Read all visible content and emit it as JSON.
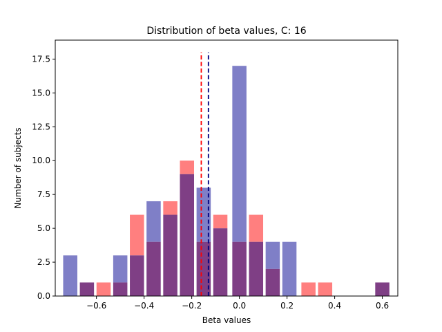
{
  "chart_data": {
    "type": "bar",
    "title": "Distribution of beta values, C: 16",
    "xlabel": "Beta values",
    "ylabel": "Number of subjects",
    "xlim": [
      -0.773,
      0.665
    ],
    "ylim": [
      0,
      18.9
    ],
    "bin_width": 0.07,
    "x_ticks": [
      {
        "value": -0.6,
        "label": "−0.6"
      },
      {
        "value": -0.4,
        "label": "−0.4"
      },
      {
        "value": -0.2,
        "label": "−0.2"
      },
      {
        "value": 0.0,
        "label": "0.0"
      },
      {
        "value": 0.2,
        "label": "0.2"
      },
      {
        "value": 0.4,
        "label": "0.4"
      },
      {
        "value": 0.6,
        "label": "0.6"
      }
    ],
    "y_ticks": [
      {
        "value": 0.0,
        "label": "0.0"
      },
      {
        "value": 2.5,
        "label": "2.5"
      },
      {
        "value": 5.0,
        "label": "5.0"
      },
      {
        "value": 7.5,
        "label": "7.5"
      },
      {
        "value": 10.0,
        "label": "10.0"
      },
      {
        "value": 12.5,
        "label": "12.5"
      },
      {
        "value": 15.0,
        "label": "15.0"
      },
      {
        "value": 17.5,
        "label": "17.5"
      }
    ],
    "grid": false,
    "legend": "none",
    "series": [
      {
        "color": "#7f7fc7",
        "bins": [
          {
            "x": -0.71,
            "value": 3
          },
          {
            "x": -0.64,
            "value": 1
          },
          {
            "x": -0.5,
            "value": 3
          },
          {
            "x": -0.43,
            "value": 3
          },
          {
            "x": -0.36,
            "value": 7
          },
          {
            "x": -0.29,
            "value": 6
          },
          {
            "x": -0.22,
            "value": 9
          },
          {
            "x": -0.15,
            "value": 8
          },
          {
            "x": -0.08,
            "value": 5
          },
          {
            "x": 0.0,
            "value": 17
          },
          {
            "x": 0.07,
            "value": 4
          },
          {
            "x": 0.14,
            "value": 4
          },
          {
            "x": 0.21,
            "value": 4
          },
          {
            "x": 0.6,
            "value": 1
          }
        ]
      },
      {
        "color": "#ff7f7f",
        "bins": [
          {
            "x": -0.64,
            "value": 1
          },
          {
            "x": -0.57,
            "value": 1
          },
          {
            "x": -0.5,
            "value": 1
          },
          {
            "x": -0.43,
            "value": 6
          },
          {
            "x": -0.36,
            "value": 4
          },
          {
            "x": -0.29,
            "value": 7
          },
          {
            "x": -0.22,
            "value": 10
          },
          {
            "x": -0.15,
            "value": 4
          },
          {
            "x": -0.08,
            "value": 6
          },
          {
            "x": 0.0,
            "value": 4
          },
          {
            "x": 0.07,
            "value": 6
          },
          {
            "x": 0.14,
            "value": 2
          },
          {
            "x": 0.29,
            "value": 1
          },
          {
            "x": 0.36,
            "value": 1
          },
          {
            "x": 0.6,
            "value": 1
          }
        ]
      }
    ],
    "overlap_color": "#7f3f85",
    "mean_lines": [
      {
        "x": -0.16,
        "y_top": 18.0,
        "color": "#ff0000"
      },
      {
        "x": -0.13,
        "y_top": 18.0,
        "color": "#00007f"
      }
    ]
  }
}
